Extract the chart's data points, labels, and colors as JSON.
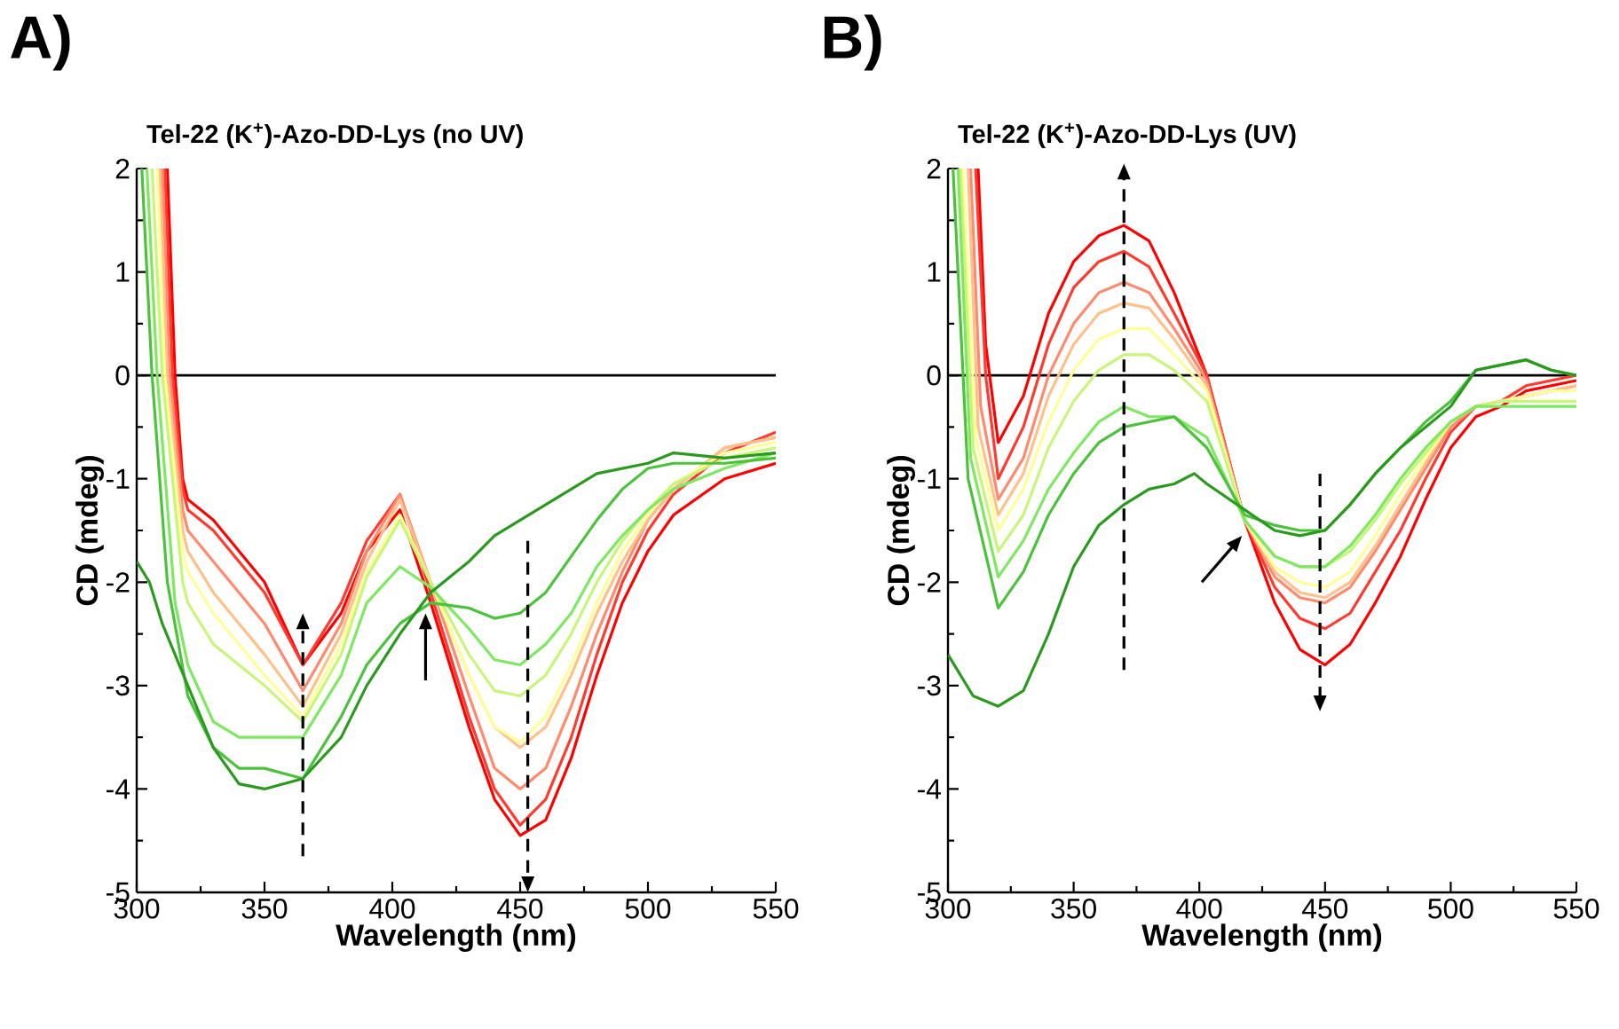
{
  "chart_data": [
    {
      "type": "line",
      "title": "Tel-22 (K$^{+}$)-Azo-DD-Lys (no UV)",
      "xlabel": "Wavelength (nm)",
      "ylabel": "CD (mdeg)",
      "annotations": [
        "A)"
      ],
      "xlim": [
        300,
        550
      ],
      "ylim": [
        -5,
        2
      ],
      "xticks": [
        300,
        350,
        400,
        450,
        500,
        550
      ],
      "yticks": [
        -5,
        -4,
        -3,
        -2,
        -1,
        0,
        1,
        2
      ],
      "line_style": "solid",
      "ref_lines": [
        {
          "axis": "y",
          "value": 0,
          "color": "#000000"
        }
      ],
      "series": [
        {
          "color": "#ff0000",
          "x": [
            312,
            315,
            318,
            320,
            330,
            340,
            350,
            365,
            380,
            390,
            403,
            415,
            430,
            440,
            450,
            460,
            470,
            480,
            490,
            500,
            510,
            530,
            550
          ],
          "values": [
            2,
            0,
            -1,
            -1.2,
            -1.4,
            -1.7,
            -2.0,
            -2.8,
            -2.3,
            -1.7,
            -1.3,
            -2.2,
            -3.4,
            -4.1,
            -4.45,
            -4.3,
            -3.7,
            -2.9,
            -2.2,
            -1.7,
            -1.35,
            -1.0,
            -0.85
          ]
        },
        {
          "color": "#ff3b2f",
          "x": [
            311,
            314,
            318,
            320,
            330,
            340,
            350,
            365,
            380,
            390,
            403,
            415,
            430,
            440,
            450,
            460,
            470,
            480,
            490,
            500,
            510,
            530,
            550
          ],
          "values": [
            2,
            0,
            -1.1,
            -1.3,
            -1.5,
            -1.8,
            -2.1,
            -2.8,
            -2.2,
            -1.6,
            -1.15,
            -2.1,
            -3.3,
            -4.0,
            -4.35,
            -4.1,
            -3.5,
            -2.7,
            -2.0,
            -1.5,
            -1.15,
            -0.75,
            -0.55
          ]
        },
        {
          "color": "#ff8a6e",
          "x": [
            310,
            313,
            318,
            320,
            330,
            340,
            350,
            365,
            380,
            390,
            403,
            415,
            430,
            440,
            450,
            460,
            470,
            480,
            490,
            500,
            510,
            530,
            550
          ],
          "values": [
            2,
            0,
            -1.3,
            -1.5,
            -1.8,
            -2.1,
            -2.4,
            -3.05,
            -2.4,
            -1.7,
            -1.15,
            -2.0,
            -3.1,
            -3.8,
            -4.0,
            -3.8,
            -3.2,
            -2.5,
            -1.9,
            -1.4,
            -1.1,
            -0.7,
            -0.6
          ]
        },
        {
          "color": "#ffc08a",
          "x": [
            309,
            312,
            318,
            320,
            330,
            340,
            350,
            365,
            380,
            390,
            403,
            415,
            430,
            440,
            450,
            460,
            470,
            480,
            490,
            500,
            510,
            530,
            550
          ],
          "values": [
            2,
            0,
            -1.5,
            -1.7,
            -2.1,
            -2.4,
            -2.7,
            -3.2,
            -2.5,
            -1.8,
            -1.2,
            -2.0,
            -2.9,
            -3.4,
            -3.6,
            -3.4,
            -2.9,
            -2.3,
            -1.8,
            -1.4,
            -1.1,
            -0.7,
            -0.6
          ]
        },
        {
          "color": "#ffff99",
          "x": [
            308,
            311,
            318,
            320,
            330,
            340,
            350,
            365,
            380,
            390,
            403,
            415,
            430,
            440,
            450,
            460,
            470,
            480,
            490,
            500,
            510,
            530,
            550
          ],
          "values": [
            2,
            0,
            -1.7,
            -1.9,
            -2.3,
            -2.6,
            -2.9,
            -3.3,
            -2.6,
            -1.9,
            -1.35,
            -2.0,
            -2.9,
            -3.4,
            -3.55,
            -3.3,
            -2.8,
            -2.2,
            -1.7,
            -1.35,
            -1.05,
            -0.75,
            -0.65
          ]
        },
        {
          "color": "#c8f57a",
          "x": [
            306,
            310,
            318,
            320,
            330,
            340,
            350,
            365,
            380,
            390,
            403,
            415,
            430,
            440,
            450,
            460,
            470,
            480,
            490,
            500,
            510,
            530,
            550
          ],
          "values": [
            2,
            0,
            -2.0,
            -2.2,
            -2.6,
            -2.8,
            -3.0,
            -3.35,
            -2.7,
            -1.95,
            -1.4,
            -2.0,
            -2.7,
            -3.05,
            -3.1,
            -2.9,
            -2.5,
            -2.0,
            -1.6,
            -1.3,
            -1.05,
            -0.8,
            -0.7
          ]
        },
        {
          "color": "#7ee860",
          "x": [
            304,
            308,
            315,
            320,
            330,
            340,
            350,
            365,
            380,
            390,
            403,
            415,
            430,
            440,
            450,
            460,
            470,
            480,
            490,
            500,
            510,
            530,
            550
          ],
          "values": [
            2,
            0,
            -2.2,
            -2.8,
            -3.35,
            -3.5,
            -3.5,
            -3.5,
            -2.9,
            -2.2,
            -1.85,
            -2.05,
            -2.45,
            -2.75,
            -2.8,
            -2.6,
            -2.3,
            -1.85,
            -1.55,
            -1.3,
            -1.1,
            -0.9,
            -0.75
          ]
        },
        {
          "color": "#4cc23c",
          "x": [
            302,
            306,
            312,
            320,
            330,
            340,
            350,
            365,
            380,
            390,
            403,
            415,
            430,
            440,
            450,
            460,
            470,
            480,
            490,
            500,
            510,
            530,
            550
          ],
          "values": [
            2,
            0,
            -2.0,
            -3.1,
            -3.6,
            -3.8,
            -3.8,
            -3.9,
            -3.3,
            -2.8,
            -2.4,
            -2.2,
            -2.25,
            -2.35,
            -2.3,
            -2.1,
            -1.75,
            -1.4,
            -1.1,
            -0.9,
            -0.85,
            -0.85,
            -0.8
          ]
        },
        {
          "color": "#2a9a1e",
          "x": [
            300,
            305,
            310,
            320,
            330,
            340,
            350,
            365,
            380,
            390,
            403,
            415,
            430,
            440,
            450,
            460,
            470,
            480,
            490,
            500,
            510,
            530,
            550
          ],
          "values": [
            -1.8,
            -2.0,
            -2.4,
            -3.0,
            -3.6,
            -3.95,
            -4.0,
            -3.9,
            -3.5,
            -3.0,
            -2.5,
            -2.1,
            -1.8,
            -1.55,
            -1.4,
            -1.25,
            -1.1,
            -0.95,
            -0.9,
            -0.85,
            -0.75,
            -0.8,
            -0.75
          ]
        }
      ]
    },
    {
      "type": "line",
      "title": "Tel-22 (K$^{+}$)-Azo-DD-Lys (UV)",
      "xlabel": "Wavelength (nm)",
      "ylabel": "CD (mdeg)",
      "annotations": [
        "B)"
      ],
      "xlim": [
        300,
        550
      ],
      "ylim": [
        -5,
        2
      ],
      "xticks": [
        300,
        350,
        400,
        450,
        500,
        550
      ],
      "yticks": [
        -5,
        -4,
        -3,
        -2,
        -1,
        0,
        1,
        2
      ],
      "line_style": "solid",
      "ref_lines": [
        {
          "axis": "y",
          "value": 0,
          "color": "#000000"
        }
      ],
      "series": [
        {
          "color": "#ff0000",
          "x": [
            312,
            315,
            320,
            330,
            340,
            350,
            360,
            370,
            380,
            390,
            403,
            418,
            430,
            440,
            450,
            460,
            470,
            480,
            490,
            500,
            510,
            520,
            530,
            540,
            550
          ],
          "values": [
            2,
            0.3,
            -0.65,
            -0.2,
            0.6,
            1.1,
            1.35,
            1.45,
            1.3,
            0.8,
            0,
            -1.4,
            -2.2,
            -2.65,
            -2.8,
            -2.6,
            -2.2,
            -1.75,
            -1.2,
            -0.7,
            -0.4,
            -0.3,
            -0.15,
            -0.1,
            -0.05
          ]
        },
        {
          "color": "#ff3b2f",
          "x": [
            311,
            315,
            320,
            330,
            340,
            350,
            360,
            370,
            380,
            390,
            403,
            418,
            430,
            440,
            450,
            460,
            470,
            480,
            490,
            500,
            510,
            520,
            530,
            540,
            550
          ],
          "values": [
            2,
            0,
            -1.0,
            -0.5,
            0.3,
            0.85,
            1.1,
            1.2,
            1.05,
            0.6,
            0,
            -1.4,
            -2.05,
            -2.35,
            -2.45,
            -2.3,
            -1.9,
            -1.5,
            -1.0,
            -0.55,
            -0.3,
            -0.25,
            -0.1,
            -0.05,
            0
          ]
        },
        {
          "color": "#ff8a6e",
          "x": [
            309,
            313,
            320,
            330,
            340,
            350,
            360,
            370,
            380,
            390,
            403,
            418,
            430,
            440,
            450,
            460,
            470,
            480,
            490,
            500,
            510,
            520,
            530,
            540,
            550
          ],
          "values": [
            2,
            -0.3,
            -1.2,
            -0.8,
            0.0,
            0.5,
            0.8,
            0.9,
            0.8,
            0.45,
            -0.05,
            -1.4,
            -1.95,
            -2.15,
            -2.2,
            -2.05,
            -1.7,
            -1.3,
            -0.9,
            -0.5,
            -0.3,
            -0.25,
            -0.2,
            -0.15,
            -0.1
          ]
        },
        {
          "color": "#ffc08a",
          "x": [
            308,
            312,
            320,
            330,
            340,
            350,
            360,
            370,
            380,
            390,
            403,
            418,
            430,
            440,
            450,
            460,
            470,
            480,
            490,
            500,
            510,
            520,
            530,
            540,
            550
          ],
          "values": [
            2,
            -0.5,
            -1.35,
            -0.95,
            -0.2,
            0.3,
            0.6,
            0.7,
            0.65,
            0.35,
            -0.1,
            -1.4,
            -1.9,
            -2.1,
            -2.15,
            -2.0,
            -1.65,
            -1.25,
            -0.85,
            -0.45,
            -0.3,
            -0.25,
            -0.2,
            -0.15,
            -0.1
          ]
        },
        {
          "color": "#ffff99",
          "x": [
            306,
            311,
            320,
            330,
            340,
            350,
            360,
            370,
            380,
            390,
            403,
            418,
            430,
            440,
            450,
            460,
            470,
            480,
            490,
            500,
            510,
            520,
            530,
            540,
            550
          ],
          "values": [
            2,
            -0.6,
            -1.5,
            -1.1,
            -0.45,
            0.05,
            0.35,
            0.45,
            0.45,
            0.2,
            -0.15,
            -1.4,
            -1.85,
            -2.0,
            -2.05,
            -1.9,
            -1.55,
            -1.15,
            -0.8,
            -0.45,
            -0.3,
            -0.25,
            -0.2,
            -0.15,
            -0.15
          ]
        },
        {
          "color": "#c8f57a",
          "x": [
            305,
            310,
            320,
            330,
            340,
            350,
            360,
            370,
            380,
            390,
            403,
            418,
            430,
            440,
            450,
            460,
            470,
            480,
            490,
            500,
            510,
            520,
            530,
            540,
            550
          ],
          "values": [
            2,
            -0.7,
            -1.7,
            -1.35,
            -0.7,
            -0.25,
            0.05,
            0.2,
            0.2,
            0.05,
            -0.25,
            -1.4,
            -1.75,
            -1.85,
            -1.85,
            -1.7,
            -1.4,
            -1.05,
            -0.75,
            -0.45,
            -0.3,
            -0.25,
            -0.25,
            -0.25,
            -0.25
          ]
        },
        {
          "color": "#7ee860",
          "x": [
            304,
            309,
            320,
            330,
            340,
            350,
            360,
            370,
            380,
            390,
            403,
            418,
            430,
            440,
            450,
            460,
            470,
            480,
            490,
            500,
            510,
            520,
            530,
            540,
            550
          ],
          "values": [
            2,
            -0.8,
            -1.95,
            -1.6,
            -1.1,
            -0.75,
            -0.45,
            -0.3,
            -0.4,
            -0.4,
            -0.6,
            -1.4,
            -1.75,
            -1.85,
            -1.85,
            -1.65,
            -1.35,
            -1.0,
            -0.7,
            -0.45,
            -0.3,
            -0.3,
            -0.3,
            -0.3,
            -0.3
          ]
        },
        {
          "color": "#4cc23c",
          "x": [
            302,
            308,
            320,
            330,
            340,
            350,
            360,
            370,
            380,
            390,
            403,
            418,
            430,
            440,
            450,
            460,
            470,
            480,
            490,
            500,
            510,
            520,
            530,
            540,
            550
          ],
          "values": [
            2,
            -1.0,
            -2.25,
            -1.9,
            -1.35,
            -0.95,
            -0.65,
            -0.5,
            -0.45,
            -0.4,
            -0.7,
            -1.35,
            -1.45,
            -1.5,
            -1.5,
            -1.25,
            -0.95,
            -0.7,
            -0.45,
            -0.25,
            0.05,
            0.1,
            0.15,
            0.05,
            0.0
          ]
        },
        {
          "color": "#2a9a1e",
          "x": [
            300,
            310,
            320,
            330,
            340,
            350,
            360,
            370,
            380,
            390,
            398,
            403,
            418,
            430,
            440,
            450,
            460,
            470,
            480,
            490,
            500,
            510,
            520,
            530,
            540,
            550
          ],
          "values": [
            -2.7,
            -3.1,
            -3.2,
            -3.05,
            -2.5,
            -1.85,
            -1.45,
            -1.25,
            -1.1,
            -1.05,
            -0.95,
            -1.05,
            -1.3,
            -1.5,
            -1.55,
            -1.5,
            -1.25,
            -0.95,
            -0.7,
            -0.5,
            -0.3,
            0.05,
            0.1,
            0.15,
            0.05,
            0.0
          ]
        }
      ]
    }
  ]
}
